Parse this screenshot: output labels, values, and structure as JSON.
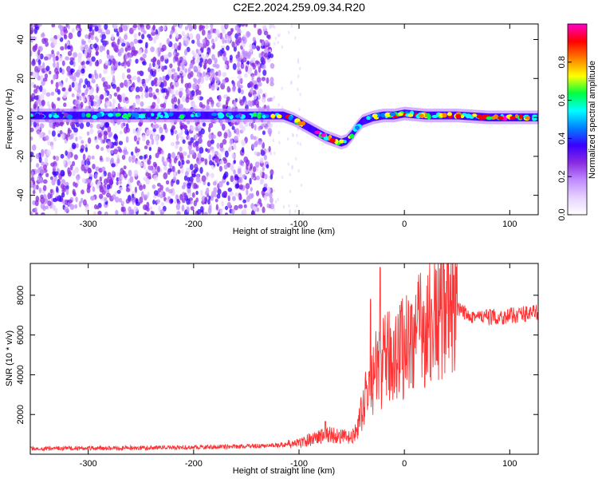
{
  "title": "C2E2.2024.259.09.34.R20",
  "chart_data": [
    {
      "type": "heatmap",
      "name": "spectrogram",
      "xlabel": "Height of straight line (km)",
      "ylabel": "Frequency (Hz)",
      "xlim": [
        -355,
        127
      ],
      "ylim": [
        -50,
        48
      ],
      "xticks": [
        -300,
        -200,
        -100,
        0,
        100
      ],
      "yticks": [
        -40,
        -20,
        0,
        20,
        40
      ],
      "colorbar": {
        "label": "Normalized spectral amplitude",
        "range": [
          0,
          1
        ],
        "ticks": [
          "0.0",
          "0.2",
          "0.4",
          "0.6",
          "0.8"
        ],
        "tick_values": [
          0,
          0.2,
          0.4,
          0.6,
          0.8
        ],
        "colormap": [
          "#ffffff",
          "#e6d2ff",
          "#c08cff",
          "#8a2be2",
          "#3a00ff",
          "#0080ff",
          "#00ffff",
          "#00ff40",
          "#ffff00",
          "#ff8000",
          "#ff0000",
          "#ff00c8"
        ]
      },
      "ridge": {
        "x": [
          -355,
          -300,
          -250,
          -200,
          -150,
          -125,
          -115,
          -105,
          -95,
          -85,
          -75,
          -65,
          -60,
          -55,
          -50,
          -45,
          -40,
          -30,
          -20,
          -10,
          0,
          20,
          50,
          80,
          100,
          127
        ],
        "y": [
          1,
          1,
          1,
          1,
          1,
          1,
          1,
          -1,
          -4,
          -7,
          -10,
          -12,
          -13,
          -12,
          -9,
          -5,
          -2,
          0,
          1,
          1,
          2,
          1,
          1,
          0,
          0,
          0
        ]
      },
      "noise_region_x": [
        -355,
        -125
      ]
    },
    {
      "type": "line",
      "name": "snr",
      "xlabel": "Height of straight line (km)",
      "ylabel": "SNR (10 * v/v)",
      "xlim": [
        -355,
        127
      ],
      "ylim": [
        0,
        9600
      ],
      "xticks": [
        -300,
        -200,
        -100,
        0,
        100
      ],
      "yticks": [
        2000,
        4000,
        6000,
        8000
      ],
      "color": "#ff3333",
      "envelope": {
        "x": [
          -355,
          -300,
          -200,
          -150,
          -120,
          -100,
          -90,
          -80,
          -70,
          -60,
          -50,
          -45,
          -40,
          -35,
          -30,
          -25,
          -20,
          -10,
          0,
          10,
          20,
          30,
          40,
          50,
          60,
          70,
          80,
          90,
          100,
          110,
          127
        ],
        "y": [
          300,
          300,
          350,
          400,
          450,
          550,
          750,
          900,
          1000,
          900,
          800,
          1200,
          2200,
          3300,
          3900,
          4300,
          4600,
          5100,
          5500,
          6000,
          6400,
          6800,
          7100,
          7200,
          7100,
          6900,
          6900,
          6900,
          6950,
          7050,
          7150
        ]
      },
      "peaks": [
        {
          "x": -23,
          "y": 9400
        },
        {
          "x": 37,
          "y": 9700
        },
        {
          "x": 47,
          "y": 9000
        },
        {
          "x": -75,
          "y": 1650
        },
        {
          "x": -32,
          "y": 7800
        }
      ]
    }
  ]
}
